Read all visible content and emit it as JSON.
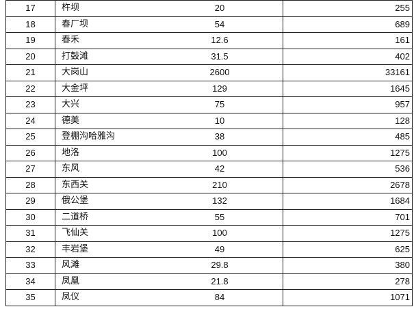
{
  "rows": [
    {
      "no": "17",
      "name": "杵坝",
      "a": "20",
      "b": "255"
    },
    {
      "no": "18",
      "name": "春厂坝",
      "a": "54",
      "b": "689"
    },
    {
      "no": "19",
      "name": "春禾",
      "a": "12.6",
      "b": "161"
    },
    {
      "no": "20",
      "name": "打鼓滩",
      "a": "31.5",
      "b": "402"
    },
    {
      "no": "21",
      "name": "大岗山",
      "a": "2600",
      "b": "33161"
    },
    {
      "no": "22",
      "name": "大金坪",
      "a": "129",
      "b": "1645"
    },
    {
      "no": "23",
      "name": "大兴",
      "a": "75",
      "b": "957"
    },
    {
      "no": "24",
      "name": "德美",
      "a": "10",
      "b": "128"
    },
    {
      "no": "25",
      "name": "登棚沟哈雅沟",
      "a": "38",
      "b": "485"
    },
    {
      "no": "26",
      "name": "地洛",
      "a": "100",
      "b": "1275"
    },
    {
      "no": "27",
      "name": "东风",
      "a": "42",
      "b": "536"
    },
    {
      "no": "28",
      "name": "东西关",
      "a": "210",
      "b": "2678"
    },
    {
      "no": "29",
      "name": "俄公堡",
      "a": "132",
      "b": "1684"
    },
    {
      "no": "30",
      "name": "二道桥",
      "a": "55",
      "b": "701"
    },
    {
      "no": "31",
      "name": "飞仙关",
      "a": "100",
      "b": "1275"
    },
    {
      "no": "32",
      "name": "丰岩堡",
      "a": "49",
      "b": "625"
    },
    {
      "no": "33",
      "name": "风滩",
      "a": "29.8",
      "b": "380"
    },
    {
      "no": "34",
      "name": "凤凰",
      "a": "21.8",
      "b": "278"
    },
    {
      "no": "35",
      "name": "凤仪",
      "a": "84",
      "b": "1071"
    }
  ]
}
